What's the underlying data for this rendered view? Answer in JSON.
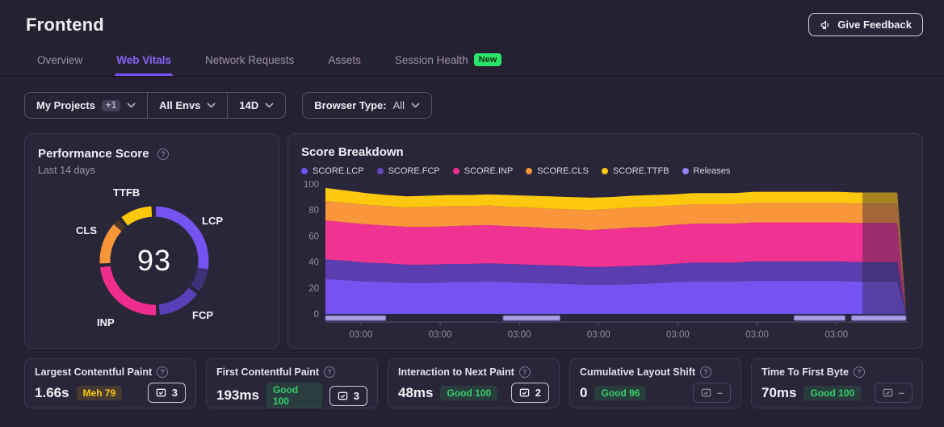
{
  "app": {
    "title": "Frontend"
  },
  "feedback": {
    "label": "Give Feedback"
  },
  "tabs": [
    {
      "label": "Overview",
      "active": false
    },
    {
      "label": "Web Vitals",
      "active": true
    },
    {
      "label": "Network Requests",
      "active": false
    },
    {
      "label": "Assets",
      "active": false
    },
    {
      "label": "Session Health",
      "active": false,
      "badge": "New"
    }
  ],
  "filters": {
    "projects": {
      "label": "My Projects",
      "count_badge": "+1"
    },
    "envs": {
      "label": "All Envs"
    },
    "date": {
      "label": "14D"
    },
    "browser": {
      "label": "Browser Type:",
      "value": "All"
    }
  },
  "performance_score": {
    "title": "Performance Score",
    "subtitle": "Last 14 days",
    "score": "93",
    "labels": {
      "ttfb": "TTFB",
      "lcp": "LCP",
      "cls": "CLS",
      "inp": "INP",
      "fcp": "FCP"
    },
    "donut_segments": [
      {
        "name": "lcp",
        "color": "#7553f0",
        "start": 2,
        "end": 99
      },
      {
        "name": "lcp-remainder",
        "color": "#3f3178",
        "start": 99,
        "end": 124
      },
      {
        "name": "fcp",
        "color": "#5a40b8",
        "start": 128,
        "end": 174
      },
      {
        "name": "inp",
        "color": "#ef2d8d",
        "start": 178,
        "end": 263
      },
      {
        "name": "cls",
        "color": "#f89537",
        "start": 267,
        "end": 312
      },
      {
        "name": "cls-remainder",
        "color": "#4a3a26",
        "start": 312,
        "end": 319
      },
      {
        "name": "ttfb",
        "color": "#fdc70c",
        "start": 323,
        "end": 357
      }
    ]
  },
  "score_breakdown": {
    "title": "Score Breakdown",
    "legend": [
      {
        "label": "SCORE.LCP",
        "color": "#7553f0"
      },
      {
        "label": "SCORE.FCP",
        "color": "#6248b8"
      },
      {
        "label": "SCORE.INP",
        "color": "#ef2d8d"
      },
      {
        "label": "SCORE.CLS",
        "color": "#f89537"
      },
      {
        "label": "SCORE.TTFB",
        "color": "#fdc70c"
      },
      {
        "label": "Releases",
        "color": "#9181f2"
      }
    ]
  },
  "chart_data": {
    "type": "area",
    "stacked": true,
    "title": "Score Breakdown",
    "ylim": [
      0,
      100
    ],
    "yticks": [
      0,
      20,
      40,
      60,
      80,
      100
    ],
    "xticks": [
      {
        "label": "03:00",
        "pos": 0.061
      },
      {
        "label": "03:00",
        "pos": 0.1975
      },
      {
        "label": "03:00",
        "pos": 0.334
      },
      {
        "label": "03:00",
        "pos": 0.4705
      },
      {
        "label": "03:00",
        "pos": 0.607
      },
      {
        "label": "03:00",
        "pos": 0.7435
      },
      {
        "label": "03:00",
        "pos": 0.88
      }
    ],
    "series": [
      {
        "name": "SCORE.LCP",
        "color": "#7553f0",
        "values": [
          27,
          26,
          25,
          24.5,
          24,
          24,
          24.5,
          24.5,
          25,
          24.5,
          24,
          23.5,
          23,
          22.5,
          22.5,
          23,
          23.5,
          24.5,
          25,
          25,
          25,
          25.5,
          25.5,
          25.5,
          25.5,
          25.5,
          25,
          25,
          25
        ]
      },
      {
        "name": "SCORE.FCP",
        "color": "#5a3dae",
        "values": [
          15,
          15,
          14.5,
          14.5,
          14,
          14,
          14,
          14,
          14,
          14,
          14,
          14,
          14,
          13.5,
          14,
          14,
          14,
          14,
          14.5,
          14.5,
          14.5,
          15,
          15,
          15,
          15,
          15,
          15,
          15,
          15
        ]
      },
      {
        "name": "SCORE.INP",
        "color": "#f03292",
        "values": [
          30,
          29.5,
          29.5,
          29,
          29,
          29,
          29,
          29.5,
          29.5,
          29,
          29,
          28.5,
          28.5,
          28.5,
          29,
          29.5,
          29.5,
          30,
          30,
          30,
          30,
          30,
          30,
          30,
          30,
          30,
          30,
          30,
          30
        ]
      },
      {
        "name": "SCORE.CLS",
        "color": "#f9953a",
        "values": [
          15,
          15,
          15,
          15,
          15,
          15.5,
          15.5,
          15,
          15,
          15,
          15,
          15,
          15,
          15.5,
          15.5,
          15.5,
          15.5,
          15,
          15,
          15,
          15,
          15,
          15,
          15,
          15,
          15,
          15,
          15,
          15
        ]
      },
      {
        "name": "SCORE.TTFB",
        "color": "#fdc90f",
        "values": [
          10,
          9.5,
          9,
          8.5,
          8.5,
          8.5,
          8.5,
          8.5,
          8.5,
          9,
          9,
          9.5,
          9.5,
          9.5,
          9,
          9,
          9,
          8.5,
          8.5,
          8.5,
          8.5,
          8.5,
          8.5,
          8.5,
          8.5,
          8.5,
          8.5,
          8.5,
          8.5
        ]
      }
    ],
    "final_drop_to_zero": true,
    "fade_start": 0.925,
    "releases": [
      [
        0,
        0.104
      ],
      [
        0.306,
        0.404
      ],
      [
        0.807,
        0.895
      ],
      [
        0.906,
        1.0
      ]
    ],
    "release_color": "#ab9fe6"
  },
  "vitals_cards": [
    {
      "title": "Largest Contentful Paint",
      "value": "1.66s",
      "badge": "Meh 79",
      "tone": "meh",
      "issues": "3",
      "enabled": true
    },
    {
      "title": "First Contentful Paint",
      "value": "193ms",
      "badge": "Good 100",
      "tone": "good",
      "issues": "3",
      "enabled": true
    },
    {
      "title": "Interaction to Next Paint",
      "value": "48ms",
      "badge": "Good 100",
      "tone": "good",
      "issues": "2",
      "enabled": true
    },
    {
      "title": "Cumulative Layout Shift",
      "value": "0",
      "badge": "Good 96",
      "tone": "good",
      "issues": "–",
      "enabled": false
    },
    {
      "title": "Time To First Byte",
      "value": "70ms",
      "badge": "Good 100",
      "tone": "good",
      "issues": "–",
      "enabled": false
    }
  ]
}
